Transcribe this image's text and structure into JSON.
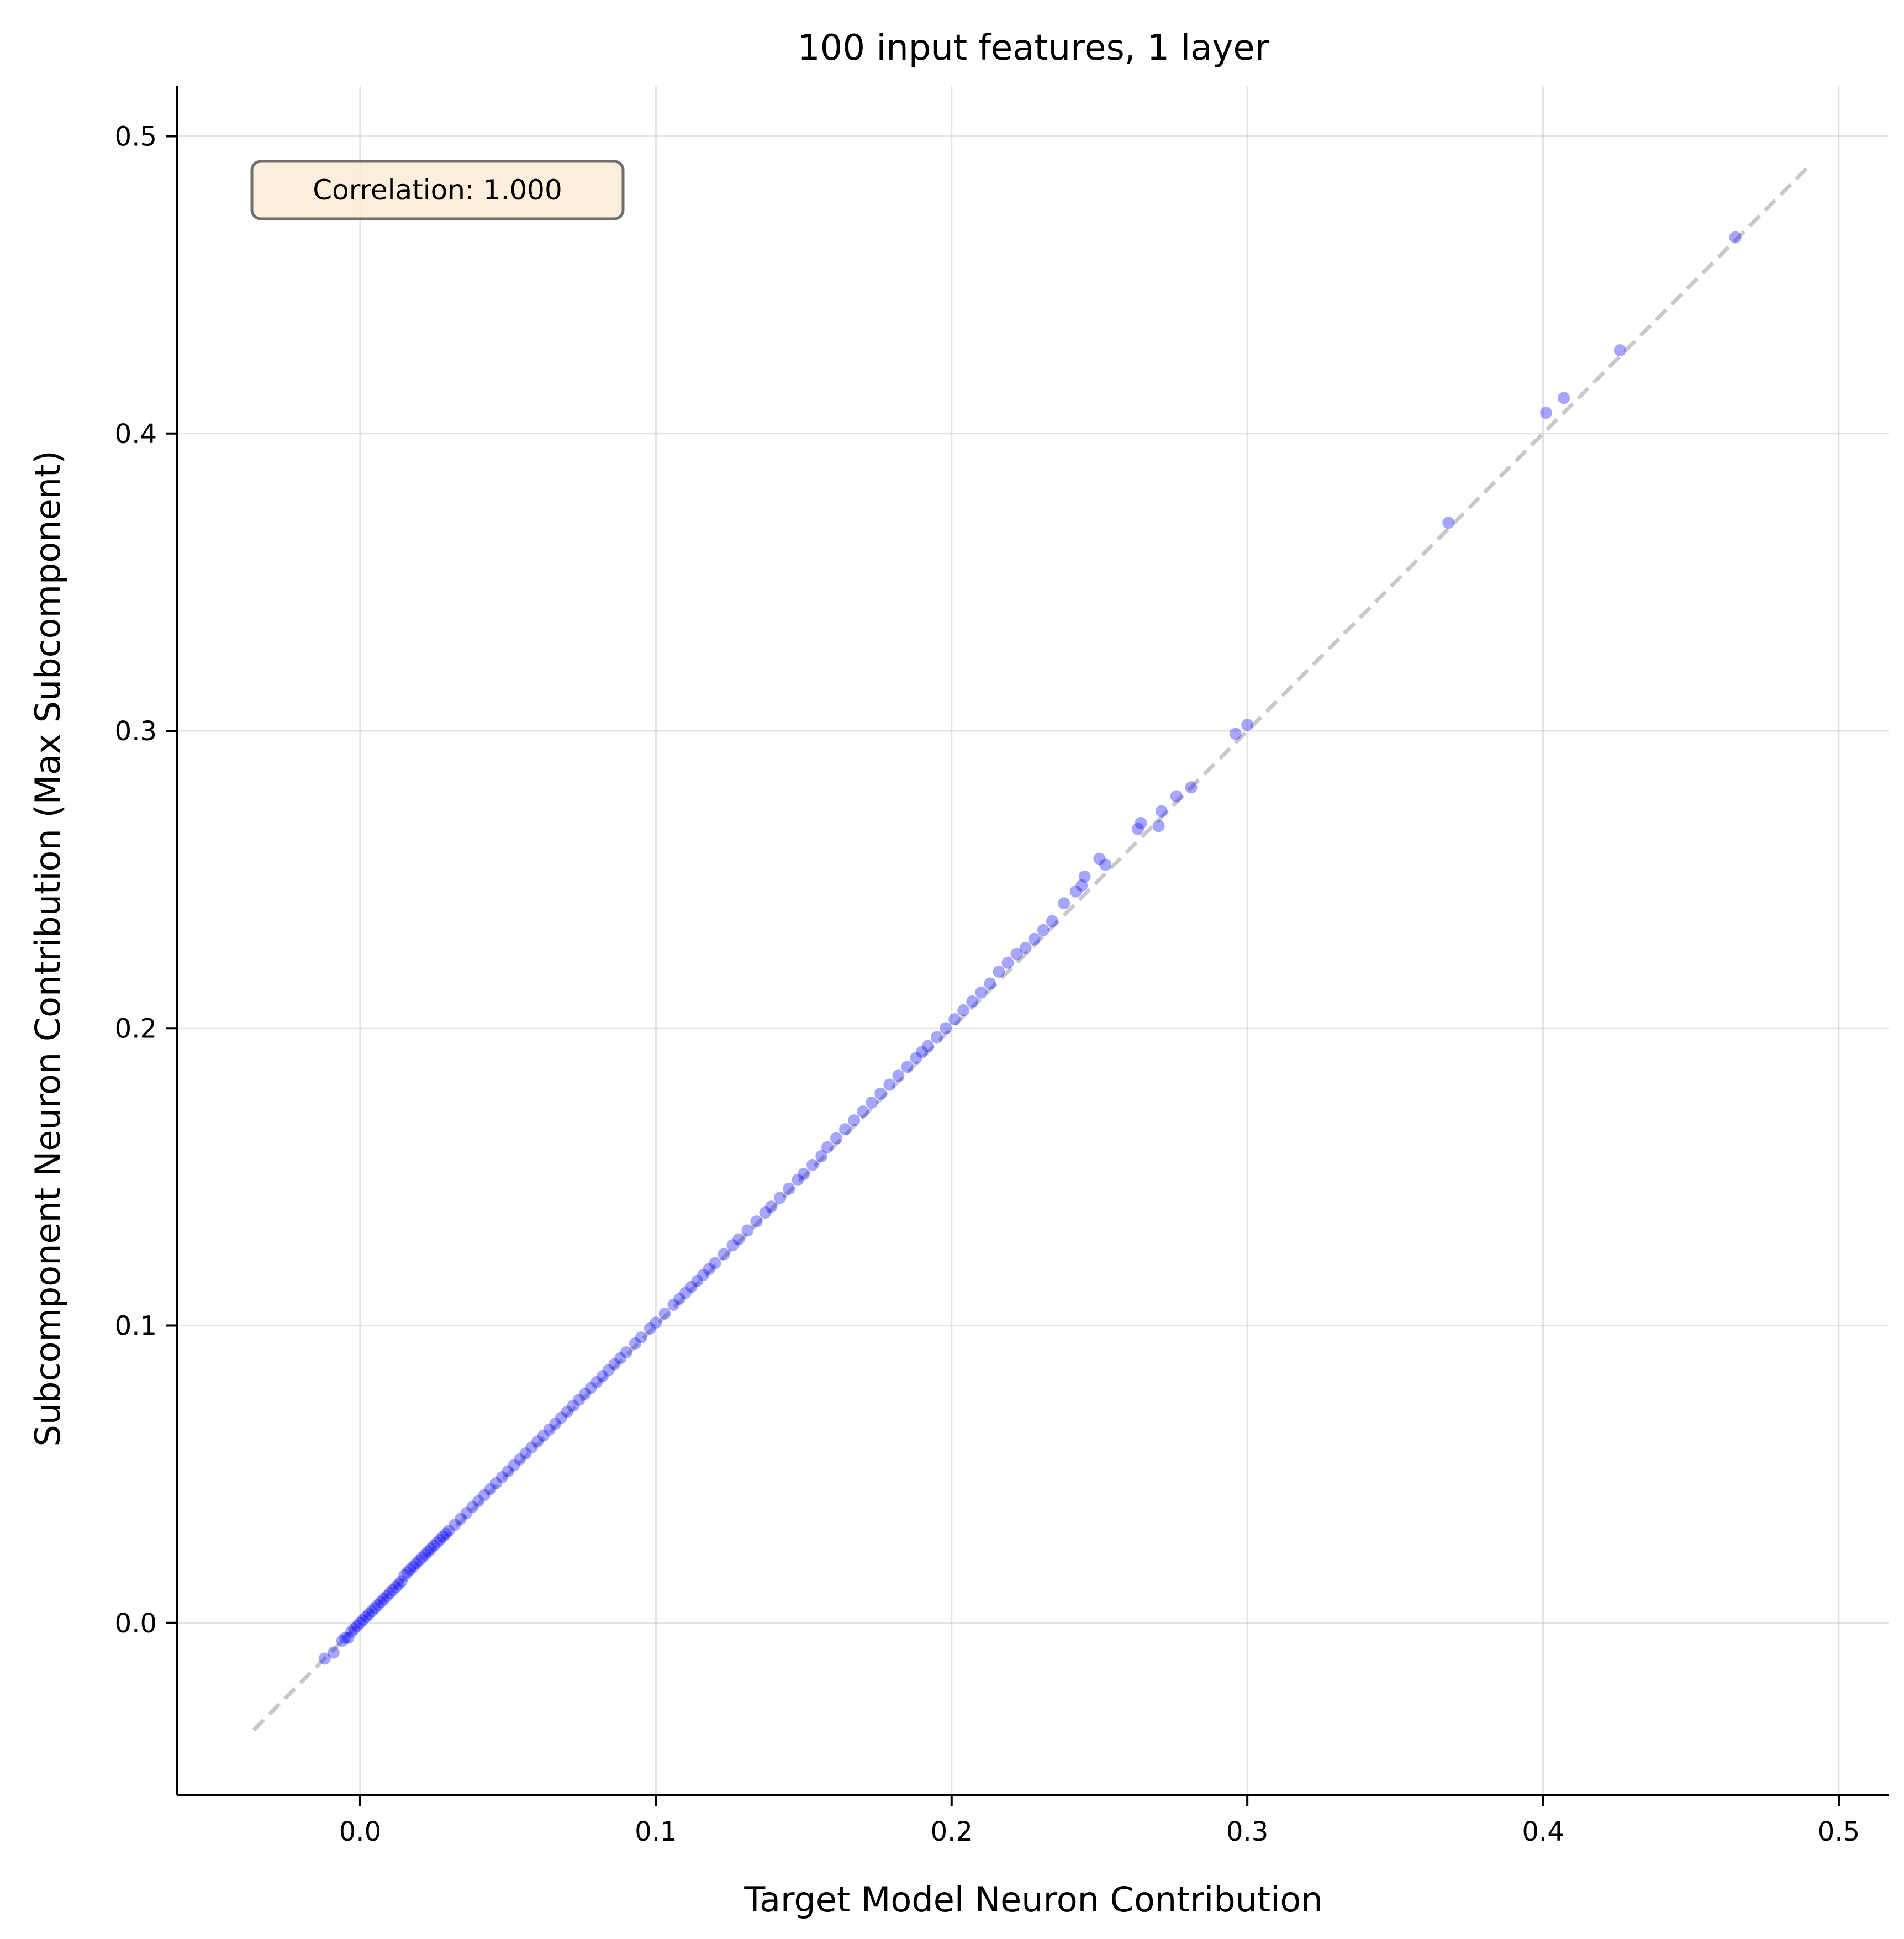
{
  "chart_data": {
    "type": "scatter",
    "title": "100 input features, 1 layer",
    "xlabel": "Target Model Neuron Contribution",
    "ylabel": "Subcomponent Neuron Contribution (Max Subcomponent)",
    "xlim": [
      -0.062,
      0.517
    ],
    "ylim": [
      -0.058,
      0.517
    ],
    "xticks": [
      0.0,
      0.1,
      0.2,
      0.3,
      0.4,
      0.5
    ],
    "xtick_labels": [
      "0.0",
      "0.1",
      "0.2",
      "0.3",
      "0.4",
      "0.5"
    ],
    "yticks": [
      0.0,
      0.1,
      0.2,
      0.3,
      0.4,
      0.5
    ],
    "ytick_labels": [
      "0.0",
      "0.1",
      "0.2",
      "0.3",
      "0.4",
      "0.5"
    ],
    "grid": true,
    "annotation": {
      "text": "Correlation: 1.000",
      "placement": "top-left"
    },
    "reference_line": {
      "style": "dashed",
      "color": "#c8c8c8",
      "x": [
        -0.036,
        0.49
      ],
      "y": [
        -0.036,
        0.49
      ]
    },
    "series": [
      {
        "color": "#0000ff",
        "opacity": 0.35,
        "points": [
          [
            -0.012,
            -0.012
          ],
          [
            -0.009,
            -0.01
          ],
          [
            -0.006,
            -0.006
          ],
          [
            -0.005,
            -0.005
          ],
          [
            -0.004,
            -0.005
          ],
          [
            -0.003,
            -0.003
          ],
          [
            -0.002,
            -0.002
          ],
          [
            -0.001,
            -0.001
          ],
          [
            0.0,
            0.0
          ],
          [
            0.001,
            0.001
          ],
          [
            0.002,
            0.002
          ],
          [
            0.003,
            0.003
          ],
          [
            0.004,
            0.004
          ],
          [
            0.005,
            0.005
          ],
          [
            0.006,
            0.006
          ],
          [
            0.007,
            0.007
          ],
          [
            0.008,
            0.008
          ],
          [
            0.009,
            0.009
          ],
          [
            0.01,
            0.01
          ],
          [
            0.011,
            0.011
          ],
          [
            0.012,
            0.012
          ],
          [
            0.013,
            0.013
          ],
          [
            0.014,
            0.014
          ],
          [
            0.015,
            0.016
          ],
          [
            0.016,
            0.017
          ],
          [
            0.017,
            0.018
          ],
          [
            0.018,
            0.019
          ],
          [
            0.019,
            0.02
          ],
          [
            0.02,
            0.021
          ],
          [
            0.021,
            0.022
          ],
          [
            0.022,
            0.023
          ],
          [
            0.023,
            0.024
          ],
          [
            0.024,
            0.025
          ],
          [
            0.025,
            0.026
          ],
          [
            0.026,
            0.027
          ],
          [
            0.027,
            0.028
          ],
          [
            0.028,
            0.029
          ],
          [
            0.029,
            0.03
          ],
          [
            0.03,
            0.031
          ],
          [
            0.032,
            0.033
          ],
          [
            0.034,
            0.035
          ],
          [
            0.036,
            0.037
          ],
          [
            0.038,
            0.039
          ],
          [
            0.04,
            0.041
          ],
          [
            0.042,
            0.043
          ],
          [
            0.044,
            0.045
          ],
          [
            0.046,
            0.047
          ],
          [
            0.048,
            0.049
          ],
          [
            0.05,
            0.051
          ],
          [
            0.052,
            0.053
          ],
          [
            0.054,
            0.055
          ],
          [
            0.056,
            0.057
          ],
          [
            0.058,
            0.059
          ],
          [
            0.06,
            0.061
          ],
          [
            0.062,
            0.063
          ],
          [
            0.064,
            0.065
          ],
          [
            0.066,
            0.067
          ],
          [
            0.068,
            0.069
          ],
          [
            0.07,
            0.071
          ],
          [
            0.072,
            0.073
          ],
          [
            0.074,
            0.075
          ],
          [
            0.076,
            0.077
          ],
          [
            0.078,
            0.079
          ],
          [
            0.08,
            0.081
          ],
          [
            0.082,
            0.083
          ],
          [
            0.084,
            0.085
          ],
          [
            0.086,
            0.087
          ],
          [
            0.088,
            0.089
          ],
          [
            0.09,
            0.091
          ],
          [
            0.093,
            0.094
          ],
          [
            0.095,
            0.096
          ],
          [
            0.098,
            0.099
          ],
          [
            0.1,
            0.101
          ],
          [
            0.103,
            0.104
          ],
          [
            0.106,
            0.107
          ],
          [
            0.108,
            0.109
          ],
          [
            0.11,
            0.111
          ],
          [
            0.112,
            0.113
          ],
          [
            0.114,
            0.115
          ],
          [
            0.116,
            0.117
          ],
          [
            0.118,
            0.119
          ],
          [
            0.12,
            0.121
          ],
          [
            0.123,
            0.124
          ],
          [
            0.126,
            0.127
          ],
          [
            0.128,
            0.129
          ],
          [
            0.131,
            0.132
          ],
          [
            0.134,
            0.135
          ],
          [
            0.137,
            0.138
          ],
          [
            0.139,
            0.14
          ],
          [
            0.142,
            0.143
          ],
          [
            0.145,
            0.146
          ],
          [
            0.148,
            0.149
          ],
          [
            0.15,
            0.151
          ],
          [
            0.153,
            0.154
          ],
          [
            0.156,
            0.157
          ],
          [
            0.158,
            0.16
          ],
          [
            0.161,
            0.163
          ],
          [
            0.164,
            0.166
          ],
          [
            0.167,
            0.169
          ],
          [
            0.17,
            0.172
          ],
          [
            0.173,
            0.175
          ],
          [
            0.176,
            0.178
          ],
          [
            0.179,
            0.181
          ],
          [
            0.182,
            0.184
          ],
          [
            0.185,
            0.187
          ],
          [
            0.188,
            0.19
          ],
          [
            0.19,
            0.192
          ],
          [
            0.192,
            0.194
          ],
          [
            0.195,
            0.197
          ],
          [
            0.198,
            0.2
          ],
          [
            0.201,
            0.203
          ],
          [
            0.204,
            0.206
          ],
          [
            0.207,
            0.209
          ],
          [
            0.21,
            0.212
          ],
          [
            0.213,
            0.215
          ],
          [
            0.216,
            0.219
          ],
          [
            0.219,
            0.222
          ],
          [
            0.222,
            0.225
          ],
          [
            0.225,
            0.227
          ],
          [
            0.228,
            0.23
          ],
          [
            0.231,
            0.233
          ],
          [
            0.234,
            0.236
          ],
          [
            0.238,
            0.242
          ],
          [
            0.242,
            0.246
          ],
          [
            0.244,
            0.248
          ],
          [
            0.245,
            0.251
          ],
          [
            0.25,
            0.257
          ],
          [
            0.252,
            0.255
          ],
          [
            0.263,
            0.267
          ],
          [
            0.264,
            0.269
          ],
          [
            0.27,
            0.268
          ],
          [
            0.271,
            0.273
          ],
          [
            0.276,
            0.278
          ],
          [
            0.281,
            0.281
          ],
          [
            0.296,
            0.299
          ],
          [
            0.3,
            0.302
          ],
          [
            0.368,
            0.37
          ],
          [
            0.401,
            0.407
          ],
          [
            0.407,
            0.412
          ],
          [
            0.426,
            0.428
          ],
          [
            0.465,
            0.466
          ]
        ]
      }
    ]
  }
}
